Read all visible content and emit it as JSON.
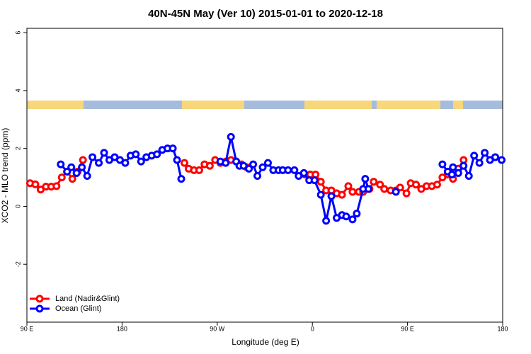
{
  "chart_data": {
    "type": "line",
    "title": "40N-45N May (Ver 10)   2015-01-01 to 2020-12-18",
    "x_label": "Longitude (deg E)",
    "y_label": "XCO2 - MLO trend (ppm)",
    "xlim": [
      90,
      540
    ],
    "ylim": [
      -4,
      6.15
    ],
    "xticks": [
      {
        "value": 90,
        "label": "90 E"
      },
      180,
      {
        "value": 270,
        "label": "90 W"
      },
      {
        "value": 360,
        "label": "0"
      },
      {
        "value": 450,
        "label": "90 E"
      },
      {
        "value": 540,
        "label": "180"
      }
    ],
    "yticks": [
      -2,
      0,
      2,
      4,
      6
    ],
    "legend": "bottomleft",
    "series": [
      {
        "name": "Land (Nadir&Glint)",
        "color": "#ff0000",
        "x": [
          93,
          98,
          103,
          108,
          113,
          118,
          123,
          128,
          133,
          138,
          143,
          190,
          239,
          243,
          248,
          253,
          258,
          263,
          268,
          273,
          278,
          283,
          288,
          293,
          298,
          320,
          353,
          358,
          363,
          368,
          373,
          378,
          383,
          388,
          394,
          398,
          404,
          408,
          414,
          418,
          424,
          428,
          434,
          439,
          443,
          449,
          453,
          458,
          463,
          468,
          473,
          478,
          483,
          488,
          493,
          498,
          503
        ],
        "values": [
          0.8,
          0.76,
          0.58,
          0.68,
          0.68,
          0.7,
          1.0,
          1.2,
          0.95,
          1.2,
          1.6,
          null,
          1.5,
          1.3,
          1.25,
          1.25,
          1.45,
          1.4,
          1.6,
          1.5,
          1.55,
          1.6,
          1.55,
          1.45,
          1.35,
          null,
          1.1,
          1.1,
          1.1,
          0.85,
          0.55,
          0.55,
          0.45,
          0.4,
          0.7,
          0.5,
          0.5,
          0.5,
          0.6,
          0.85,
          0.75,
          0.6,
          0.55,
          0.55,
          0.65,
          0.45,
          0.8,
          0.75,
          0.6,
          0.7,
          0.7,
          0.75,
          1.0,
          1.1,
          0.95,
          1.3,
          1.6
        ]
      },
      {
        "name": "Ocean (Glint)",
        "color": "#0000ff",
        "x": [
          122,
          128,
          132,
          137,
          142,
          147,
          152,
          158,
          163,
          168,
          173,
          178,
          183,
          188,
          193,
          198,
          203,
          208,
          213,
          218,
          223,
          228,
          232,
          236,
          255,
          273,
          278,
          283,
          288,
          291,
          295,
          300,
          304,
          308,
          313,
          318,
          323,
          328,
          332,
          337,
          343,
          347,
          352,
          357,
          362,
          368,
          373,
          378,
          383,
          388,
          392,
          398,
          402,
          408,
          410,
          413,
          430,
          439,
          460,
          483,
          488,
          492,
          493,
          498,
          503,
          508,
          513,
          518,
          523,
          528,
          533,
          539
        ],
        "values": [
          1.45,
          1.2,
          1.35,
          1.15,
          1.35,
          1.05,
          1.7,
          1.5,
          1.85,
          1.6,
          1.7,
          1.6,
          1.5,
          1.75,
          1.8,
          1.55,
          1.7,
          1.75,
          1.8,
          1.95,
          2.0,
          2.0,
          1.6,
          0.95,
          null,
          1.55,
          1.5,
          2.4,
          1.55,
          1.4,
          1.4,
          1.3,
          1.45,
          1.05,
          1.35,
          1.5,
          1.25,
          1.25,
          1.25,
          1.25,
          1.25,
          1.05,
          1.15,
          0.9,
          0.9,
          0.4,
          -0.5,
          0.35,
          -0.4,
          -0.3,
          -0.35,
          -0.45,
          -0.25,
          0.6,
          0.95,
          0.6,
          null,
          0.5,
          null,
          1.45,
          1.2,
          1.1,
          1.35,
          1.15,
          1.4,
          1.05,
          1.75,
          1.5,
          1.85,
          1.6,
          1.7,
          1.6
        ]
      }
    ]
  }
}
